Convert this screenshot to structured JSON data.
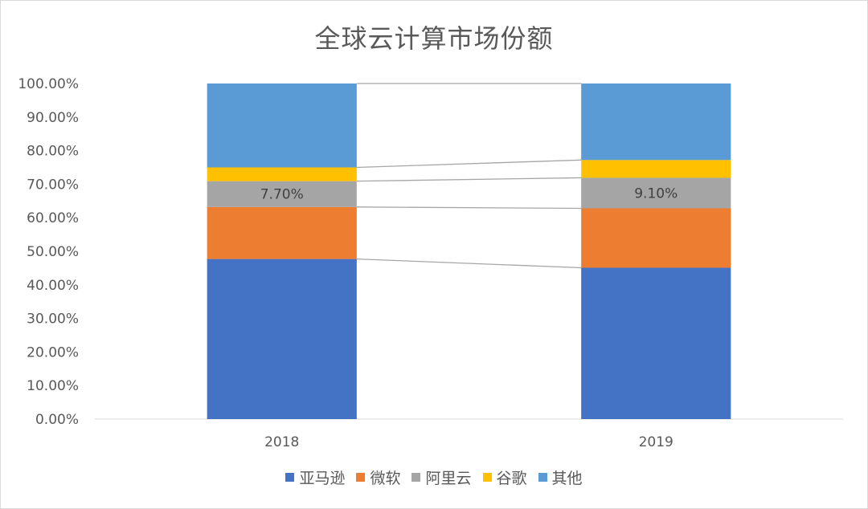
{
  "chart_data": {
    "type": "bar",
    "stacked": true,
    "title": "全球云计算市场份额",
    "categories": [
      "2018",
      "2019"
    ],
    "ylim": [
      0,
      1
    ],
    "yticks": [
      "0.00%",
      "10.00%",
      "20.00%",
      "30.00%",
      "40.00%",
      "50.00%",
      "60.00%",
      "70.00%",
      "80.00%",
      "90.00%",
      "100.00%"
    ],
    "grid": false,
    "legend_position": "bottom",
    "series_lines": true,
    "series": [
      {
        "name": "亚马逊",
        "color": "#4472C4",
        "values": [
          0.477,
          0.451
        ],
        "labels": [
          "",
          ""
        ]
      },
      {
        "name": "微软",
        "color": "#ED7D31",
        "values": [
          0.155,
          0.177
        ],
        "labels": [
          "",
          ""
        ]
      },
      {
        "name": "阿里云",
        "color": "#A5A5A5",
        "values": [
          0.077,
          0.091
        ],
        "labels": [
          "7.70%",
          "9.10%"
        ]
      },
      {
        "name": "谷歌",
        "color": "#FFC000",
        "values": [
          0.041,
          0.053
        ],
        "labels": [
          "",
          ""
        ]
      },
      {
        "name": "其他",
        "color": "#5B9BD5",
        "values": [
          0.25,
          0.228
        ],
        "labels": [
          "",
          ""
        ]
      }
    ]
  }
}
